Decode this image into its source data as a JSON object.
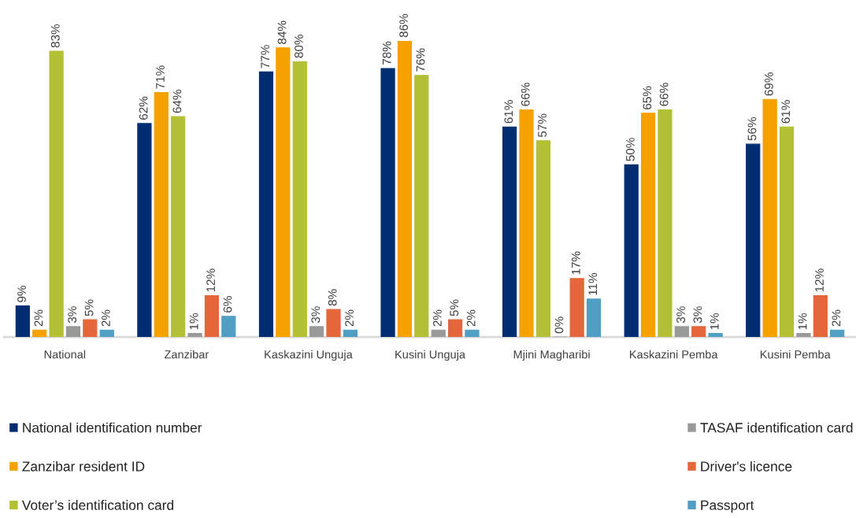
{
  "chart_data": {
    "type": "bar",
    "categories": [
      "National",
      "Zanzibar",
      "Kaskazini Unguja",
      "Kusini Unguja",
      "Mjini Magharibi",
      "Kaskazini Pemba",
      "Kusini Pemba"
    ],
    "series": [
      {
        "name": "National identification number",
        "color": "#002d72",
        "values": [
          9,
          62,
          77,
          78,
          61,
          50,
          56
        ],
        "value_labels": [
          "9%",
          "62%",
          "77%",
          "78%",
          "61%",
          "50%",
          "56%"
        ]
      },
      {
        "name": "Zanzibar resident ID",
        "color": "#f5a100",
        "values": [
          2,
          71,
          84,
          86,
          66,
          65,
          69
        ],
        "value_labels": [
          "2%",
          "71%",
          "84%",
          "86%",
          "66%",
          "65%",
          "69%"
        ]
      },
      {
        "name": "Voter’s identification card",
        "color": "#b3c034",
        "values": [
          83,
          64,
          80,
          76,
          57,
          66,
          61
        ],
        "value_labels": [
          "83%",
          "64%",
          "80%",
          "76%",
          "57%",
          "66%",
          "61%"
        ]
      },
      {
        "name": "TASAF identification card",
        "color": "#999999",
        "values": [
          3,
          1,
          3,
          2,
          0,
          3,
          1
        ],
        "value_labels": [
          "3%",
          "1%",
          "3%",
          "2%",
          "0%",
          "3%",
          "1%"
        ]
      },
      {
        "name": "Driver's licence",
        "color": "#e5663a",
        "values": [
          5,
          12,
          8,
          5,
          17,
          3,
          12
        ],
        "value_labels": [
          "5%",
          "12%",
          "8%",
          "5%",
          "17%",
          "3%",
          "12%"
        ]
      },
      {
        "name": "Passport",
        "color": "#509ec4",
        "values": [
          2,
          6,
          2,
          2,
          11,
          1,
          2
        ],
        "value_labels": [
          "2%",
          "6%",
          "2%",
          "2%",
          "11%",
          "1%",
          "2%"
        ]
      }
    ],
    "tick_labels": "x",
    "legend": "bottom"
  }
}
